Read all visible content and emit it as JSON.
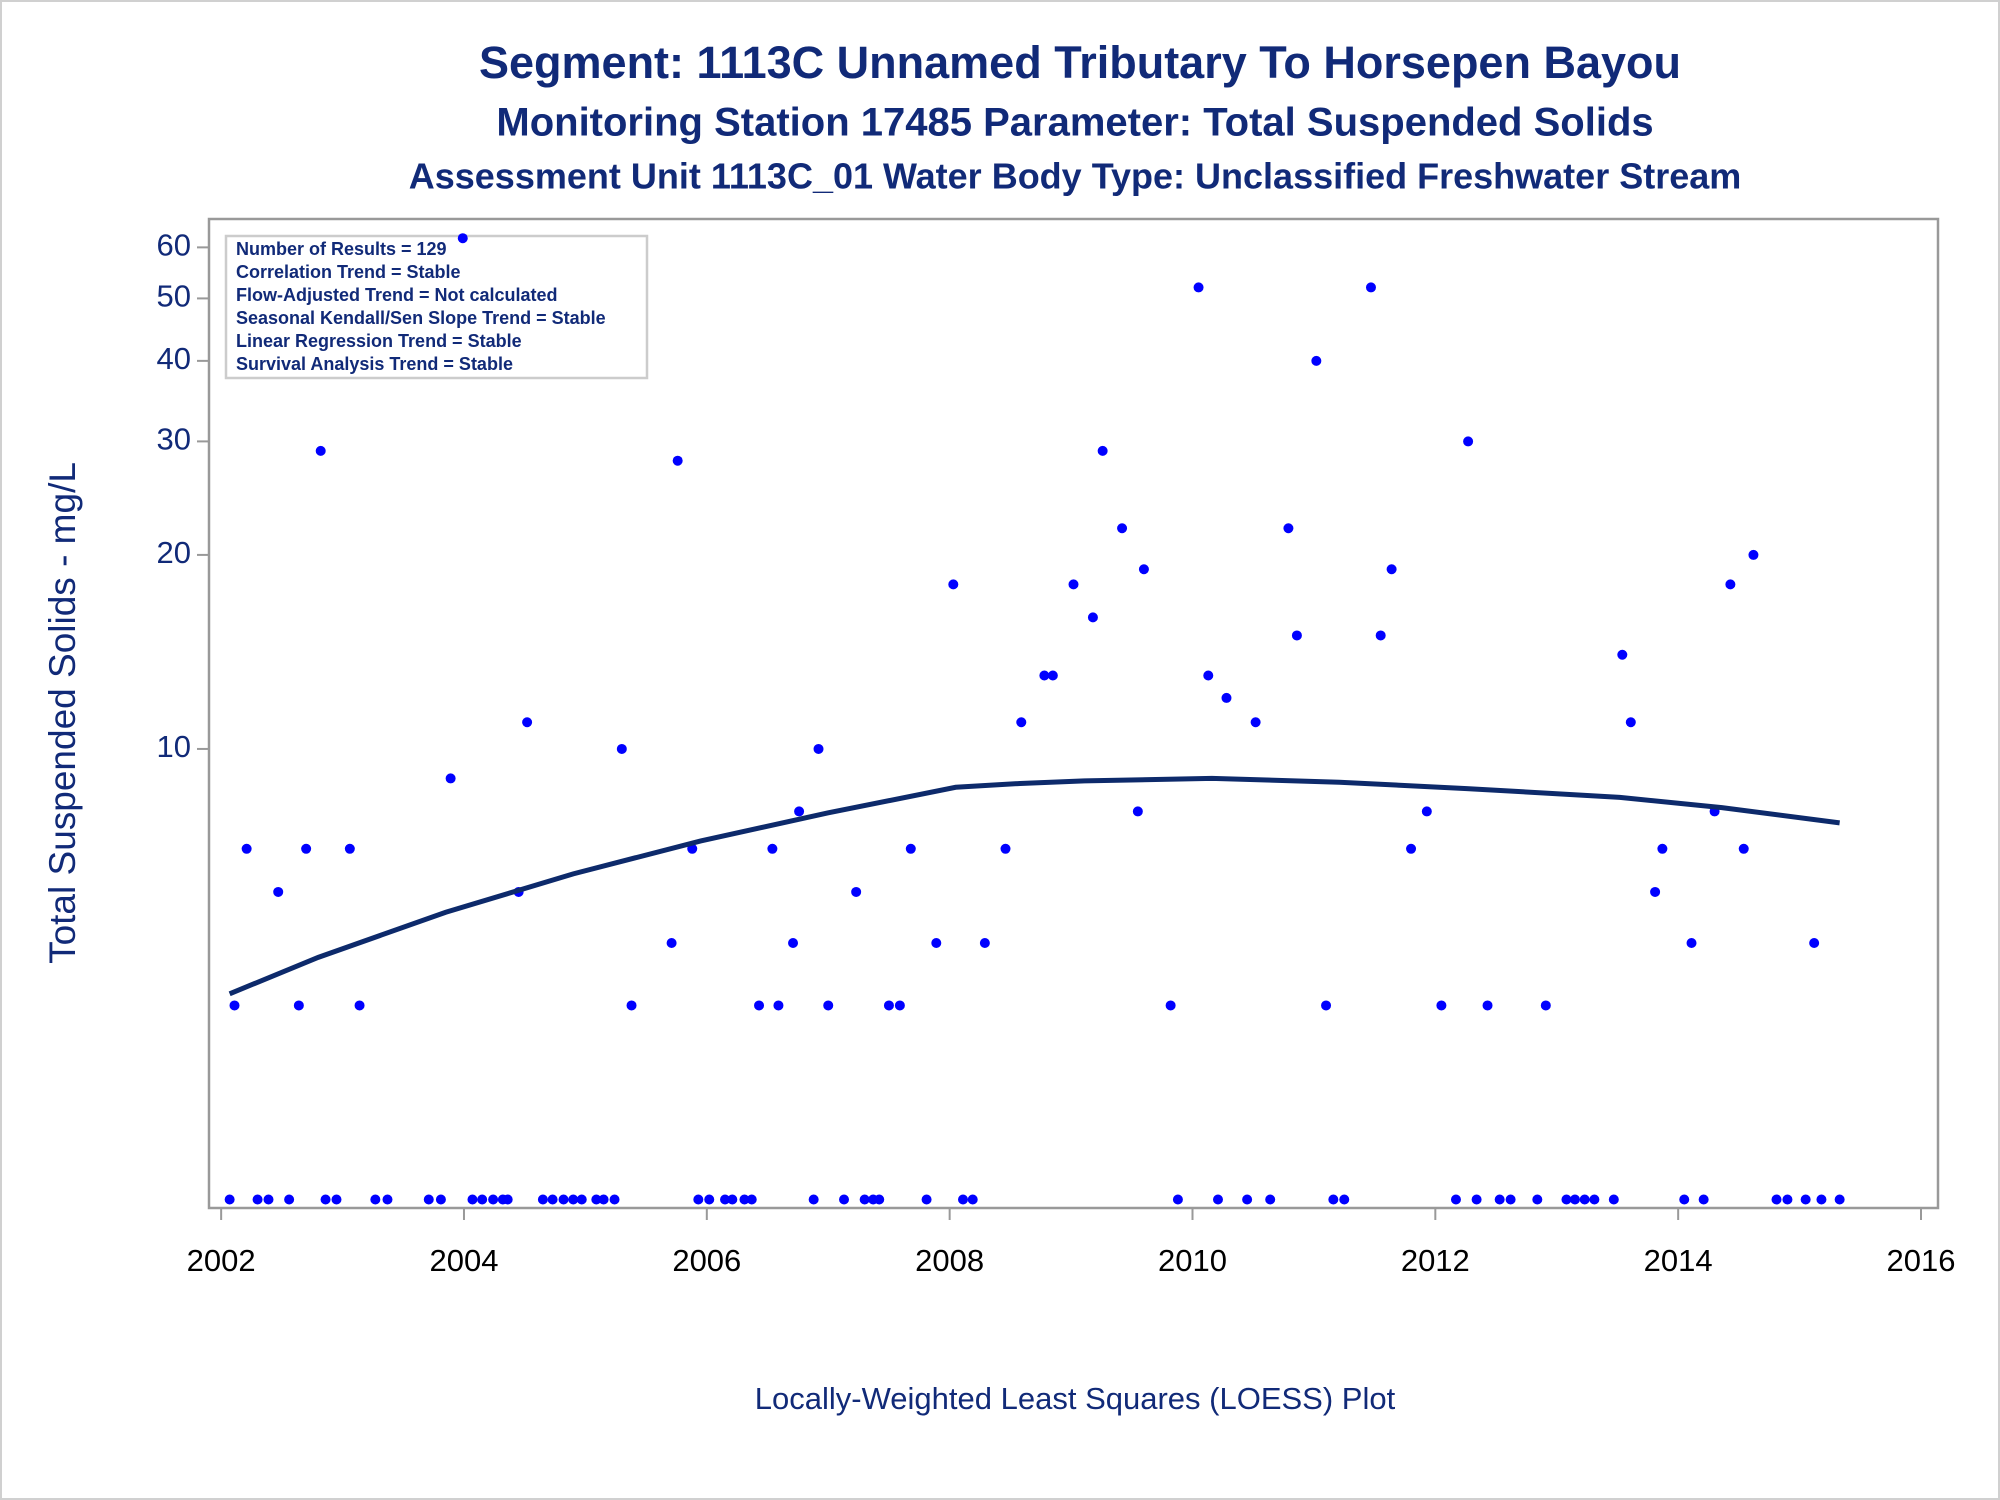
{
  "chart_data": {
    "type": "scatter",
    "title": "Segment: 1113C  Unnamed Tributary To Horsepen Bayou",
    "subtitle": "Monitoring Station 17485 Parameter: Total Suspended Solids",
    "subtitle2": "Assessment Unit 1113C_01   Water Body Type: Unclassified Freshwater Stream",
    "annotations": [
      "Number of Results = 129",
      "Correlation Trend = Stable",
      "Flow-Adjusted Trend = Not calculated",
      "Seasonal Kendall/Sen Slope Trend = Stable",
      "Linear Regression Trend = Stable",
      "Survival Analysis Trend = Stable"
    ],
    "y_label": "Total Suspended Solids - mg/L",
    "x_label": "Locally-Weighted Least Squares (LOESS) Plot",
    "y_scale": "log",
    "xlim": [
      2001.9,
      2016.14
    ],
    "ylim": [
      1.94,
      66.4
    ],
    "xticks": [
      2002,
      2004,
      2006,
      2008,
      2010,
      2012,
      2014,
      2016
    ],
    "yticks": [
      10,
      20,
      30,
      40,
      50,
      60
    ],
    "series": [
      {
        "type": "scatter",
        "color": "#0000ff",
        "x": [
          2002.07,
          2002.3,
          2002.39,
          2002.56,
          2002.86,
          2002.95,
          2003.27,
          2003.37,
          2003.71,
          2003.81,
          2004.07,
          2004.15,
          2004.24,
          2004.32,
          2004.36,
          2004.65,
          2004.73,
          2004.82,
          2004.9,
          2004.97,
          2005.09,
          2005.15,
          2005.24,
          2005.93,
          2006.02,
          2006.15,
          2006.21,
          2006.31,
          2006.37,
          2006.88,
          2007.13,
          2007.3,
          2007.37,
          2007.42,
          2007.81,
          2008.11,
          2008.19,
          2009.88,
          2010.21,
          2010.45,
          2010.64,
          2011.16,
          2011.25,
          2012.17,
          2012.34,
          2012.53,
          2012.62,
          2012.84,
          2013.08,
          2013.15,
          2013.23,
          2013.31,
          2013.47,
          2014.05,
          2014.21,
          2014.81,
          2014.9,
          2015.05,
          2015.18,
          2015.33,
          2002.11,
          2002.64,
          2003.14,
          2005.38,
          2006.43,
          2006.59,
          2007.0,
          2007.5,
          2007.59,
          2009.82,
          2011.1,
          2012.05,
          2012.43,
          2012.91,
          2005.71,
          2006.71,
          2007.89,
          2008.29,
          2014.11,
          2015.12,
          2002.47,
          2004.45,
          2007.23,
          2013.81,
          2002.21,
          2002.7,
          2003.06,
          2005.88,
          2006.54,
          2007.68,
          2008.46,
          2011.8,
          2013.87,
          2014.54,
          2006.76,
          2009.55,
          2011.93,
          2014.3,
          2002.82,
          2003.89,
          2003.99,
          2004.52,
          2005.3,
          2005.76,
          2006.92,
          2008.03,
          2008.59,
          2008.78,
          2008.85,
          2009.02,
          2009.18,
          2009.26,
          2009.42,
          2009.6,
          2010.05,
          2010.13,
          2010.28,
          2010.52,
          2010.79,
          2010.86,
          2011.02,
          2011.47,
          2011.55,
          2011.64,
          2012.27,
          2013.54,
          2013.61,
          2014.43,
          2014.62
        ],
        "values": [
          2,
          2,
          2,
          2,
          2,
          2,
          2,
          2,
          2,
          2,
          2,
          2,
          2,
          2,
          2,
          2,
          2,
          2,
          2,
          2,
          2,
          2,
          2,
          2,
          2,
          2,
          2,
          2,
          2,
          2,
          2,
          2,
          2,
          2,
          2,
          2,
          2,
          2,
          2,
          2,
          2,
          2,
          2,
          2,
          2,
          2,
          2,
          2,
          2,
          2,
          2,
          2,
          2,
          2,
          2,
          2,
          2,
          2,
          2,
          2,
          4,
          4,
          4,
          4,
          4,
          4,
          4,
          4,
          4,
          4,
          4,
          4,
          4,
          4,
          5,
          5,
          5,
          5,
          5,
          5,
          6,
          6,
          6,
          6,
          7,
          7,
          7,
          7,
          7,
          7,
          7,
          7,
          7,
          7,
          8,
          8,
          8,
          8,
          29,
          9,
          62,
          11,
          10,
          28,
          10,
          18,
          11,
          13,
          13,
          18,
          16,
          29,
          22,
          19,
          52,
          13,
          12,
          11,
          22,
          15,
          40,
          52,
          15,
          19,
          30,
          14,
          11,
          18,
          20
        ]
      },
      {
        "type": "line",
        "color": "#0d2a6b",
        "x": [
          2002.07,
          2002.8,
          2003.85,
          2004.9,
          2005.95,
          2007.0,
          2008.05,
          2008.58,
          2009.11,
          2010.16,
          2011.21,
          2012.26,
          2013.52,
          2014.36,
          2015.33
        ],
        "values": [
          4.17,
          4.75,
          5.58,
          6.4,
          7.2,
          7.96,
          8.72,
          8.84,
          8.92,
          9.0,
          8.88,
          8.68,
          8.41,
          8.11,
          7.68
        ]
      }
    ]
  }
}
